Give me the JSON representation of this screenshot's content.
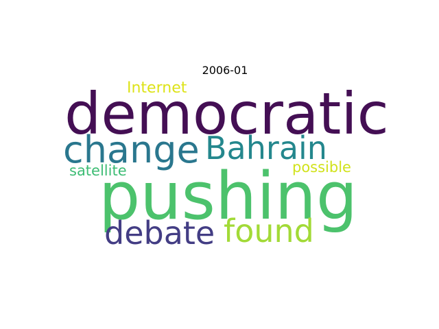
{
  "title": "2006-01",
  "words": [
    {
      "text": "democratic",
      "color": "#440f54"
    },
    {
      "text": "pushing",
      "color": "#4cc26c"
    },
    {
      "text": "change",
      "color": "#2a778e"
    },
    {
      "text": "Bahrain",
      "color": "#24878d"
    },
    {
      "text": "debate",
      "color": "#433d84"
    },
    {
      "text": "found",
      "color": "#a2da37"
    },
    {
      "text": "Internet",
      "color": "#dde318"
    },
    {
      "text": "satellite",
      "color": "#3dbc74"
    },
    {
      "text": "possible",
      "color": "#d1e21b"
    }
  ]
}
